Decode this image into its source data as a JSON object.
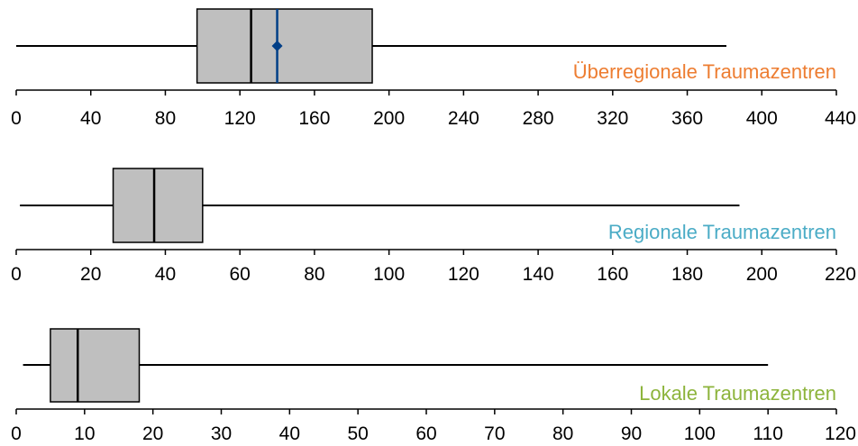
{
  "chart_data": [
    {
      "type": "boxplot",
      "title": "Überregionale Traumazentren",
      "title_color": "#ED7D31",
      "xlim": [
        0,
        440
      ],
      "ticks": [
        0,
        40,
        80,
        120,
        160,
        200,
        240,
        280,
        320,
        360,
        400,
        440
      ],
      "min": 0,
      "q1": 97,
      "median": 126,
      "q3": 191,
      "max": 381,
      "mean": 140,
      "mean_color": "#003F87"
    },
    {
      "type": "boxplot",
      "title": "Regionale Traumazentren",
      "title_color": "#4BACC6",
      "xlim": [
        0,
        220
      ],
      "ticks": [
        0,
        20,
        40,
        60,
        80,
        100,
        120,
        140,
        160,
        180,
        200,
        220
      ],
      "min": 1,
      "q1": 26,
      "median": 37,
      "q3": 50,
      "max": 194
    },
    {
      "type": "boxplot",
      "title": "Lokale Traumazentren",
      "title_color": "#8DB43C",
      "xlim": [
        0,
        120
      ],
      "ticks": [
        0,
        10,
        20,
        30,
        40,
        50,
        60,
        70,
        80,
        90,
        100,
        110,
        120
      ],
      "min": 1,
      "q1": 5,
      "median": 9,
      "q3": 18,
      "max": 110
    }
  ]
}
